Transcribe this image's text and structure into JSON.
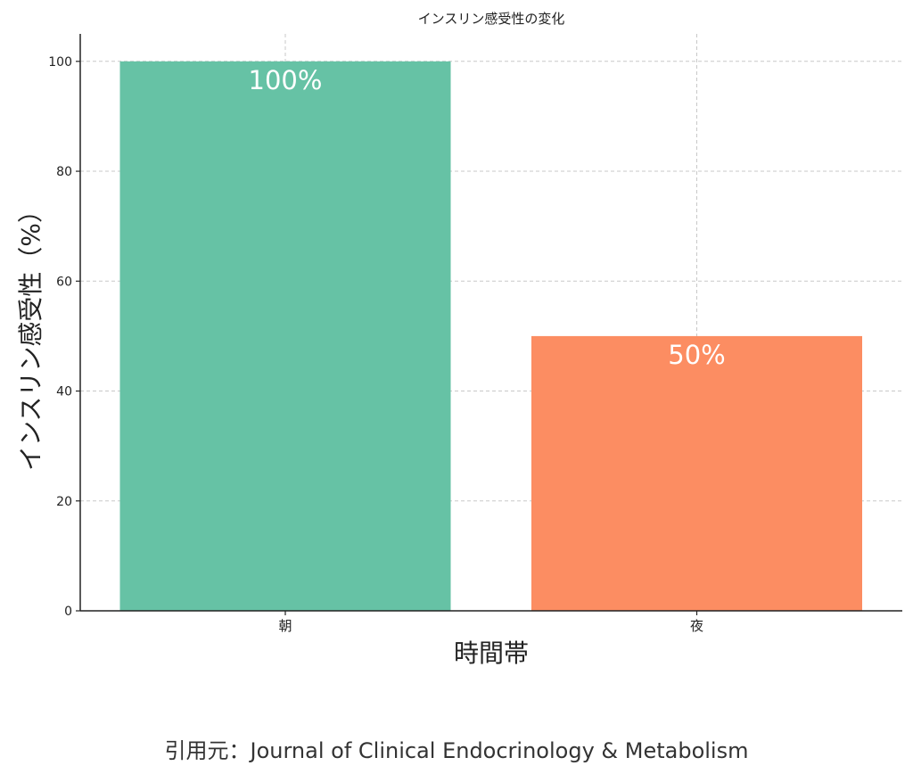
{
  "chart_data": {
    "type": "bar",
    "title": "インスリン感受性の変化",
    "xlabel": "時間帯",
    "ylabel": "インスリン感受性（%）",
    "categories": [
      "朝",
      "夜"
    ],
    "values": [
      100,
      50
    ],
    "data_labels": [
      "100%",
      "50%"
    ],
    "colors": [
      "#66c2a5",
      "#fc8d62"
    ],
    "ylim": [
      0,
      105
    ],
    "yticks": [
      0,
      20,
      40,
      60,
      80,
      100
    ],
    "grid": true
  },
  "caption": "引用元：Journal of Clinical Endocrinology & Metabolism"
}
